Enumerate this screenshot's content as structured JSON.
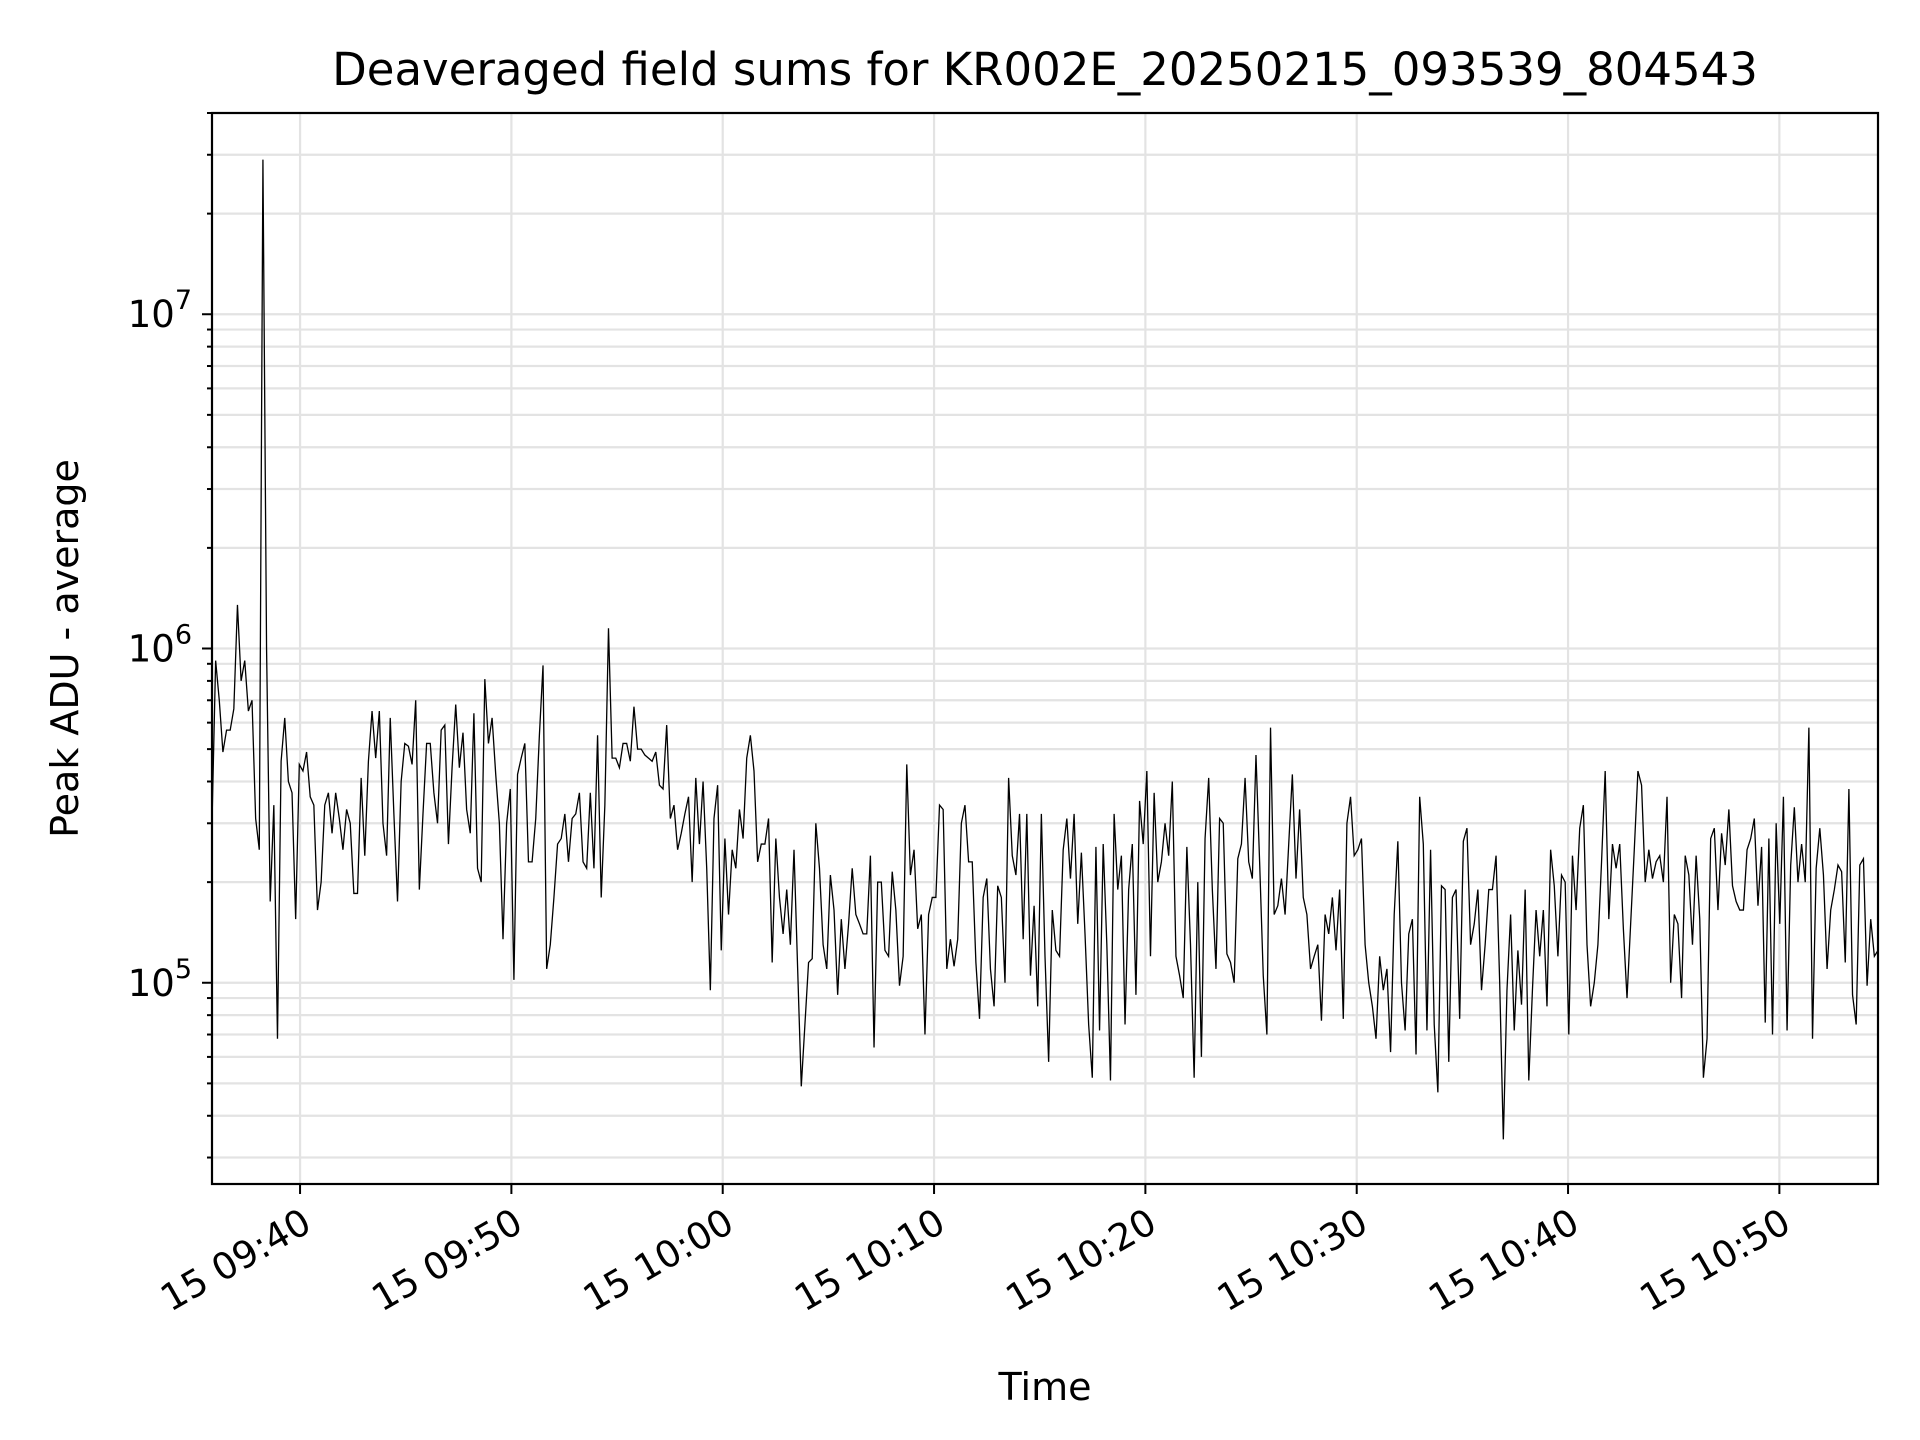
{
  "chart_data": {
    "type": "line",
    "title": "Deaveraged field sums for KR002E_20250215_093539_804543",
    "xlabel": "Time",
    "ylabel": "Peak ADU - average",
    "yscale": "log",
    "grid": true,
    "xlim": [
      "2025-02-15 09:35:50",
      "2025-02-15 10:54:40"
    ],
    "ylim": [
      25000,
      40000000
    ],
    "x_ticks": [
      {
        "value": "2025-02-15 09:40:00",
        "label": "15 09:40"
      },
      {
        "value": "2025-02-15 09:50:00",
        "label": "15 09:50"
      },
      {
        "value": "2025-02-15 10:00:00",
        "label": "15 10:00"
      },
      {
        "value": "2025-02-15 10:10:00",
        "label": "15 10:10"
      },
      {
        "value": "2025-02-15 10:20:00",
        "label": "15 10:20"
      },
      {
        "value": "2025-02-15 10:30:00",
        "label": "15 10:30"
      },
      {
        "value": "2025-02-15 10:40:00",
        "label": "15 10:40"
      },
      {
        "value": "2025-02-15 10:50:00",
        "label": "15 10:50"
      }
    ],
    "y_ticks": [
      {
        "value": 100000,
        "base": "10",
        "exp": "5"
      },
      {
        "value": 1000000,
        "base": "10",
        "exp": "6"
      },
      {
        "value": 10000000,
        "base": "10",
        "exp": "7"
      }
    ],
    "series": [
      {
        "color": "#000000",
        "x_start": "2025-02-15 09:35:50",
        "x_end": "2025-02-15 10:54:40",
        "values": [
          300000,
          920000,
          700000,
          490000,
          570000,
          570000,
          660000,
          1350000,
          800000,
          920000,
          650000,
          700000,
          310000,
          250000,
          29000000,
          1000000,
          175000,
          340000,
          68000,
          460000,
          620000,
          400000,
          370000,
          155000,
          450000,
          430000,
          490000,
          360000,
          340000,
          165000,
          200000,
          340000,
          370000,
          280000,
          370000,
          310000,
          250000,
          330000,
          300000,
          185000,
          185000,
          410000,
          240000,
          460000,
          650000,
          470000,
          650000,
          300000,
          240000,
          620000,
          320000,
          175000,
          400000,
          520000,
          510000,
          450000,
          700000,
          190000,
          320000,
          520000,
          520000,
          370000,
          300000,
          570000,
          590000,
          260000,
          440000,
          680000,
          440000,
          560000,
          330000,
          280000,
          640000,
          220000,
          200000,
          810000,
          520000,
          620000,
          420000,
          300000,
          135000,
          300000,
          380000,
          102000,
          420000,
          470000,
          520000,
          230000,
          230000,
          310000,
          550000,
          890000,
          110000,
          130000,
          180000,
          260000,
          270000,
          320000,
          230000,
          310000,
          320000,
          370000,
          230000,
          220000,
          370000,
          220000,
          550000,
          180000,
          340000,
          1150000,
          470000,
          470000,
          440000,
          520000,
          520000,
          460000,
          670000,
          500000,
          500000,
          480000,
          470000,
          460000,
          490000,
          390000,
          380000,
          590000,
          310000,
          340000,
          250000,
          280000,
          320000,
          360000,
          200000,
          410000,
          260000,
          400000,
          220000,
          95000,
          310000,
          390000,
          125000,
          270000,
          160000,
          250000,
          220000,
          330000,
          270000,
          470000,
          550000,
          430000,
          230000,
          260000,
          260000,
          310000,
          115000,
          270000,
          180000,
          140000,
          190000,
          130000,
          250000,
          110000,
          49000,
          75000,
          115000,
          118000,
          300000,
          220000,
          130000,
          110000,
          210000,
          165000,
          92000,
          155000,
          110000,
          150000,
          220000,
          160000,
          150000,
          140000,
          140000,
          240000,
          64000,
          200000,
          200000,
          125000,
          120000,
          215000,
          165000,
          98000,
          120000,
          450000,
          210000,
          250000,
          145000,
          160000,
          70000,
          160000,
          180000,
          180000,
          340000,
          330000,
          110000,
          135000,
          112000,
          135000,
          300000,
          340000,
          230000,
          230000,
          115000,
          78000,
          180000,
          205000,
          110000,
          85000,
          195000,
          180000,
          100000,
          410000,
          240000,
          210000,
          320000,
          135000,
          320000,
          105000,
          170000,
          85000,
          320000,
          120000,
          58000,
          165000,
          125000,
          120000,
          250000,
          310000,
          205000,
          320000,
          150000,
          245000,
          140000,
          75000,
          52000,
          255000,
          72000,
          260000,
          130000,
          51000,
          320000,
          190000,
          240000,
          75000,
          190000,
          260000,
          92000,
          350000,
          260000,
          430000,
          120000,
          370000,
          200000,
          230000,
          300000,
          240000,
          400000,
          120000,
          105000,
          90000,
          255000,
          130000,
          52000,
          200000,
          60000,
          270000,
          410000,
          190000,
          110000,
          310000,
          300000,
          122000,
          115000,
          100000,
          235000,
          260000,
          410000,
          230000,
          205000,
          480000,
          230000,
          105000,
          70000,
          580000,
          160000,
          170000,
          205000,
          160000,
          260000,
          420000,
          205000,
          330000,
          180000,
          160000,
          110000,
          120000,
          130000,
          77000,
          160000,
          140000,
          180000,
          125000,
          190000,
          78000,
          300000,
          360000,
          240000,
          250000,
          270000,
          130000,
          100000,
          85000,
          68000,
          120000,
          95000,
          110000,
          62000,
          160000,
          265000,
          100000,
          72000,
          140000,
          155000,
          61000,
          360000,
          260000,
          72000,
          250000,
          75000,
          47000,
          195000,
          190000,
          58000,
          180000,
          190000,
          78000,
          265000,
          290000,
          130000,
          150000,
          190000,
          95000,
          130000,
          190000,
          190000,
          240000,
          100000,
          34000,
          95000,
          160000,
          72000,
          125000,
          86000,
          190000,
          51000,
          95000,
          165000,
          120000,
          165000,
          85000,
          250000,
          195000,
          120000,
          210000,
          200000,
          70000,
          240000,
          165000,
          290000,
          340000,
          130000,
          85000,
          100000,
          130000,
          230000,
          430000,
          155000,
          260000,
          220000,
          260000,
          145000,
          90000,
          150000,
          250000,
          430000,
          390000,
          200000,
          250000,
          205000,
          230000,
          240000,
          200000,
          360000,
          100000,
          160000,
          150000,
          90000,
          240000,
          210000,
          130000,
          240000,
          155000,
          52000,
          68000,
          270000,
          290000,
          165000,
          280000,
          225000,
          330000,
          195000,
          175000,
          165000,
          165000,
          250000,
          270000,
          310000,
          170000,
          255000,
          76000,
          270000,
          70000,
          300000,
          150000,
          360000,
          72000,
          225000,
          335000,
          200000,
          260000,
          200000,
          580000,
          68000,
          220000,
          290000,
          210000,
          110000,
          165000,
          190000,
          225000,
          215000,
          115000,
          380000,
          92000,
          75000,
          225000,
          235000,
          98000,
          155000,
          120000,
          125000
        ]
      }
    ]
  }
}
